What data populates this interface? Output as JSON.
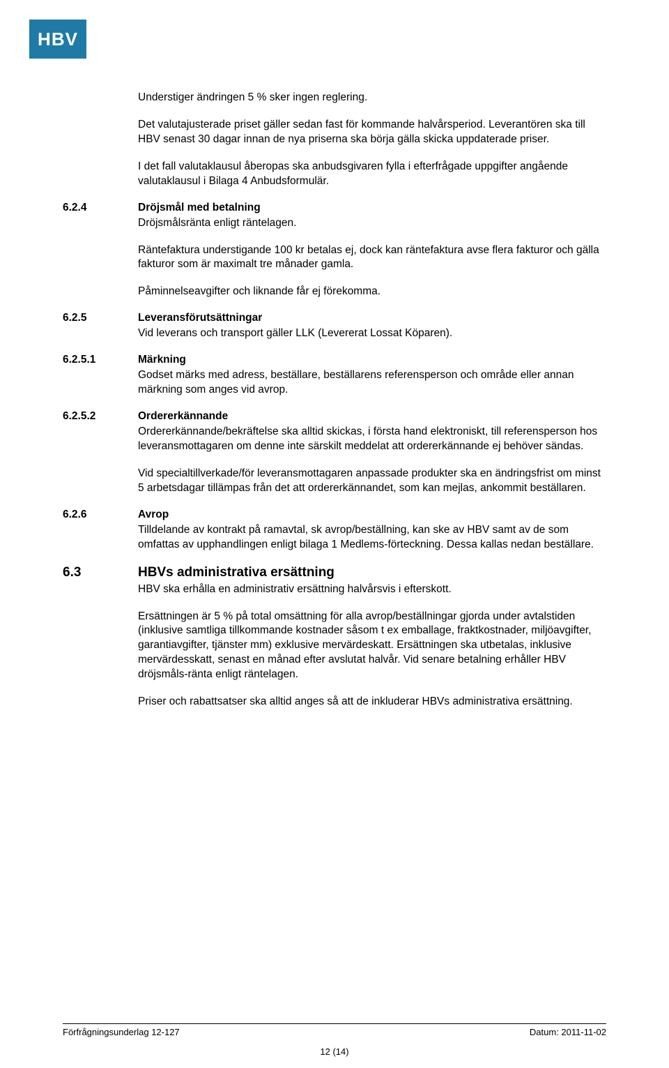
{
  "logo": {
    "text": "HBV",
    "bg_color": "#1f7ba6",
    "text_color": "#ffffff"
  },
  "intro": {
    "p1": "Understiger ändringen 5 % sker ingen reglering.",
    "p2": "Det valutajusterade priset gäller sedan fast för kommande halvårsperiod. Leverantören ska till HBV senast 30 dagar innan de nya priserna ska börja gälla skicka uppdaterade priser.",
    "p3": "I det fall valutaklausul åberopas ska anbudsgivaren fylla i efterfrågade uppgifter angående valutaklausul  i Bilaga 4 Anbudsformulär."
  },
  "s624": {
    "num": "6.2.4",
    "title": "Dröjsmål med betalning",
    "p1": "Dröjsmålsränta enligt räntelagen.",
    "p2": "Räntefaktura understigande 100 kr betalas ej, dock kan räntefaktura avse flera fakturor och gälla fakturor som är maximalt tre månader gamla.",
    "p3": "Påminnelseavgifter och liknande får ej förekomma."
  },
  "s625": {
    "num": "6.2.5",
    "title": "Leveransförutsättningar",
    "p1": "Vid leverans och transport gäller LLK  (Levererat Lossat Köparen)."
  },
  "s6251": {
    "num": "6.2.5.1",
    "title": "Märkning",
    "p1": "Godset märks med adress, beställare, beställarens referensperson och område eller annan märkning som anges vid avrop."
  },
  "s6252": {
    "num": "6.2.5.2",
    "title": "Ordererkännande",
    "p1": "Ordererkännande/bekräftelse ska alltid skickas, i första hand elektroniskt, till referensperson hos leveransmottagaren om denne inte särskilt meddelat att ordererkännande ej behöver sändas.",
    "p2": "Vid specialtillverkade/för leveransmottagaren anpassade produkter ska en ändringsfrist om minst 5 arbetsdagar tillämpas från det att ordererkännandet, som kan mejlas, ankommit beställaren."
  },
  "s626": {
    "num": "6.2.6",
    "title": "Avrop",
    "p1": "Tilldelande av kontrakt på ramavtal, sk avrop/beställning, kan ske av HBV samt av de som omfattas av upphandlingen enligt bilaga 1 Medlems-förteckning. Dessa kallas nedan beställare."
  },
  "s63": {
    "num": "6.3",
    "title": "HBVs administrativa ersättning",
    "p1": "HBV ska erhålla en administrativ ersättning halvårsvis i efterskott.",
    "p2": "Ersättningen är 5 % på total omsättning för alla avrop/beställningar gjorda under avtalstiden (inklusive samtliga tillkommande kostnader såsom t ex emballage, fraktkostnader, miljöavgifter, garantiavgifter, tjänster mm) exklusive mervärdeskatt. Ersättningen ska utbetalas, inklusive mervärdesskatt, senast en månad efter avslutat halvår. Vid senare betalning erhåller HBV dröjsmåls-ränta enligt räntelagen.",
    "p3": "Priser och rabattsatser ska alltid anges så att de inkluderar HBVs administrativa ersättning."
  },
  "footer": {
    "left": "Förfrågningsunderlag 12-127",
    "right": "Datum: 2011-11-02",
    "page": "12 (14)"
  }
}
